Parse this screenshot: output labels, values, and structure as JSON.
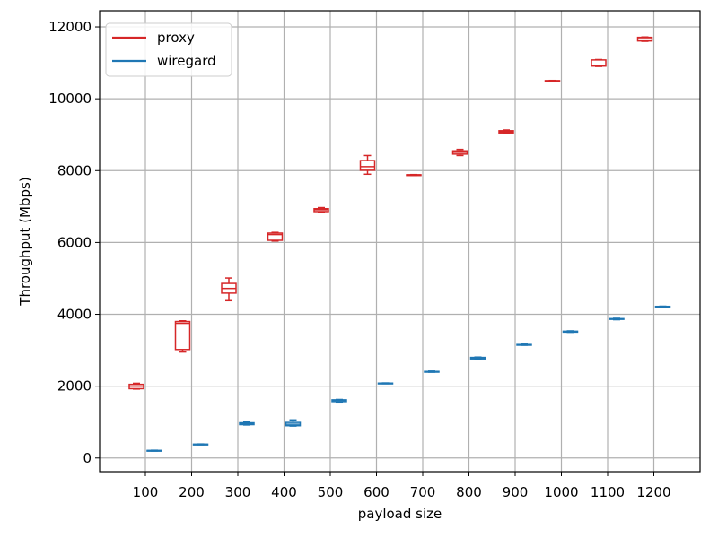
{
  "chart_data": {
    "type": "box",
    "xlabel": "payload size",
    "ylabel": "Throughput (Mbps)",
    "categories": [
      "100",
      "200",
      "300",
      "400",
      "500",
      "600",
      "700",
      "800",
      "900",
      "1000",
      "1100",
      "1200"
    ],
    "ylim": [
      -380,
      12450
    ],
    "yticks": [
      "0",
      "2000",
      "4000",
      "6000",
      "8000",
      "10000",
      "12000"
    ],
    "grid": true,
    "legend_position": "top-left",
    "series": [
      {
        "name": "proxy",
        "color": "#d62728",
        "boxes": [
          {
            "whislo": 1920,
            "q1": 1930,
            "med": 2000,
            "q3": 2050,
            "whishi": 2080
          },
          {
            "whislo": 2950,
            "q1": 3020,
            "med": 3750,
            "q3": 3800,
            "whishi": 3820
          },
          {
            "whislo": 4380,
            "q1": 4590,
            "med": 4720,
            "q3": 4860,
            "whishi": 5010
          },
          {
            "whislo": 6040,
            "q1": 6060,
            "med": 6220,
            "q3": 6260,
            "whishi": 6280
          },
          {
            "whislo": 6850,
            "q1": 6860,
            "med": 6910,
            "q3": 6940,
            "whishi": 6970
          },
          {
            "whislo": 7900,
            "q1": 8010,
            "med": 8110,
            "q3": 8280,
            "whishi": 8420
          },
          {
            "whislo": 7870,
            "q1": 7875,
            "med": 7880,
            "q3": 7885,
            "whishi": 7890
          },
          {
            "whislo": 8420,
            "q1": 8460,
            "med": 8510,
            "q3": 8550,
            "whishi": 8590
          },
          {
            "whislo": 9040,
            "q1": 9050,
            "med": 9080,
            "q3": 9110,
            "whishi": 9130
          },
          {
            "whislo": 10490,
            "q1": 10495,
            "med": 10500,
            "q3": 10505,
            "whishi": 10510
          },
          {
            "whislo": 10900,
            "q1": 10910,
            "med": 10920,
            "q3": 11080,
            "whishi": 11090
          },
          {
            "whislo": 11600,
            "q1": 11610,
            "med": 11700,
            "q3": 11710,
            "whishi": 11720
          }
        ]
      },
      {
        "name": "wiregard",
        "color": "#1f77b4",
        "boxes": [
          {
            "whislo": 195,
            "q1": 200,
            "med": 205,
            "q3": 210,
            "whishi": 215
          },
          {
            "whislo": 370,
            "q1": 375,
            "med": 380,
            "q3": 385,
            "whishi": 390
          },
          {
            "whislo": 920,
            "q1": 930,
            "med": 960,
            "q3": 980,
            "whishi": 1000
          },
          {
            "whislo": 890,
            "q1": 900,
            "med": 940,
            "q3": 990,
            "whishi": 1060
          },
          {
            "whislo": 1560,
            "q1": 1570,
            "med": 1600,
            "q3": 1620,
            "whishi": 1630
          },
          {
            "whislo": 2070,
            "q1": 2075,
            "med": 2080,
            "q3": 2085,
            "whishi": 2090
          },
          {
            "whislo": 2390,
            "q1": 2395,
            "med": 2400,
            "q3": 2410,
            "whishi": 2420
          },
          {
            "whislo": 2750,
            "q1": 2760,
            "med": 2780,
            "q3": 2800,
            "whishi": 2810
          },
          {
            "whislo": 3140,
            "q1": 3145,
            "med": 3150,
            "q3": 3160,
            "whishi": 3170
          },
          {
            "whislo": 3500,
            "q1": 3505,
            "med": 3520,
            "q3": 3530,
            "whishi": 3540
          },
          {
            "whislo": 3850,
            "q1": 3860,
            "med": 3870,
            "q3": 3880,
            "whishi": 3890
          },
          {
            "whislo": 4205,
            "q1": 4210,
            "med": 4215,
            "q3": 4220,
            "whishi": 4225
          }
        ]
      }
    ]
  }
}
